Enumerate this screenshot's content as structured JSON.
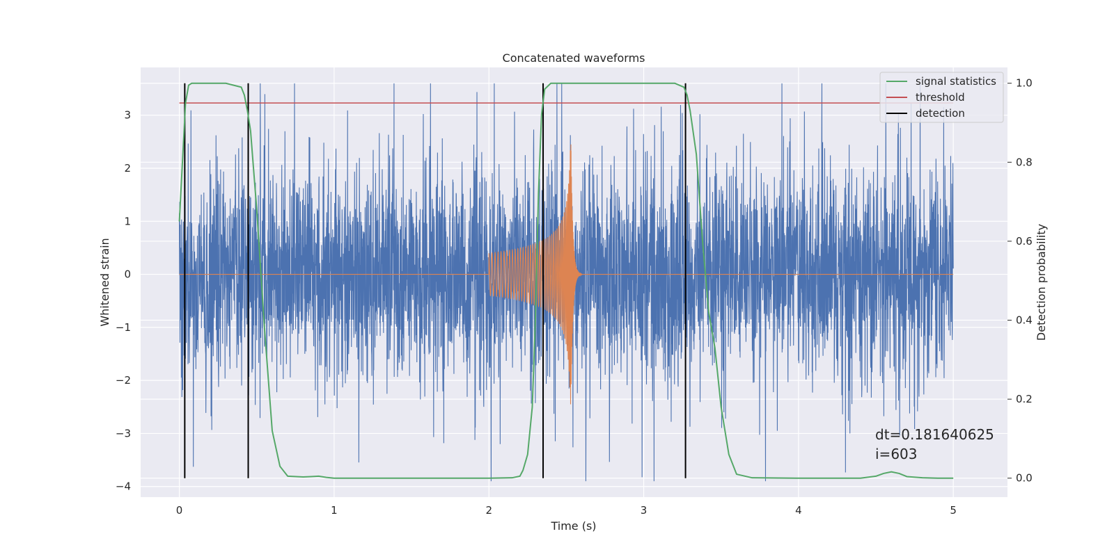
{
  "chart_data": {
    "type": "line",
    "title": "Concatenated waveforms",
    "xlabel": "Time (s)",
    "ylabel": "Whitened strain",
    "ylabel_right": "Detection probability",
    "xlim": [
      -0.25,
      5.35
    ],
    "ylim": [
      -4.2,
      3.9
    ],
    "ylim_right": [
      -0.048,
      1.04
    ],
    "x_ticks": [
      "0",
      "1",
      "2",
      "3",
      "4",
      "5"
    ],
    "x_tick_values": [
      0,
      1,
      2,
      3,
      4,
      5
    ],
    "y_ticks": [
      "−4",
      "−3",
      "−2",
      "−1",
      "0",
      "1",
      "2",
      "3"
    ],
    "y_tick_values": [
      -4,
      -3,
      -2,
      -1,
      0,
      1,
      2,
      3
    ],
    "y_right_ticks": [
      "0.0",
      "0.2",
      "0.4",
      "0.6",
      "0.8",
      "1.0"
    ],
    "y_right_tick_values": [
      0.0,
      0.2,
      0.4,
      0.6,
      0.8,
      1.0
    ],
    "grid": true,
    "legend_position": "upper-right",
    "colors": {
      "noise": "#4c72b0",
      "injection": "#dd8452",
      "signal_statistics": "#55a868",
      "threshold": "#c44e52",
      "detection": "#000000",
      "plot_background": "#eaeaf2",
      "grid": "#ffffff"
    },
    "series": [
      {
        "name": "signal statistics",
        "axis": "right",
        "x": [
          0.0,
          0.02,
          0.04,
          0.06,
          0.08,
          0.1,
          0.2,
          0.3,
          0.4,
          0.42,
          0.44,
          0.46,
          0.5,
          0.55,
          0.6,
          0.65,
          0.7,
          0.8,
          0.85,
          0.9,
          0.95,
          1.0,
          1.5,
          2.0,
          2.15,
          2.2,
          2.22,
          2.25,
          2.28,
          2.3,
          2.32,
          2.34,
          2.36,
          2.4,
          2.5,
          3.0,
          3.2,
          3.26,
          3.28,
          3.3,
          3.34,
          3.38,
          3.42,
          3.46,
          3.5,
          3.55,
          3.6,
          3.7,
          4.0,
          4.4,
          4.5,
          4.55,
          4.6,
          4.65,
          4.7,
          4.8,
          4.9,
          5.0
        ],
        "values": [
          0.65,
          0.8,
          0.95,
          0.995,
          1.0,
          1.0,
          1.0,
          1.0,
          0.99,
          0.97,
          0.93,
          0.88,
          0.68,
          0.38,
          0.12,
          0.03,
          0.005,
          0.003,
          0.004,
          0.005,
          0.002,
          0.0,
          0.0,
          0.0,
          0.001,
          0.005,
          0.02,
          0.06,
          0.18,
          0.4,
          0.72,
          0.92,
          0.985,
          1.0,
          1.0,
          1.0,
          1.0,
          0.99,
          0.97,
          0.93,
          0.82,
          0.6,
          0.42,
          0.33,
          0.18,
          0.06,
          0.01,
          0.001,
          0.0,
          0.0,
          0.005,
          0.012,
          0.016,
          0.012,
          0.004,
          0.001,
          0.0,
          0.0
        ]
      },
      {
        "name": "threshold",
        "axis": "right",
        "x": [
          0.0,
          5.0
        ],
        "values": [
          0.95,
          0.95
        ]
      },
      {
        "name": "detection",
        "axis": "right",
        "x": [
          0.035,
          0.445,
          2.35,
          3.27
        ],
        "y_range": [
          0.0,
          1.0
        ]
      }
    ],
    "noise_trace": {
      "axis": "left",
      "x_range": [
        0.0,
        5.0
      ],
      "amplitude_envelope": [
        -3.9,
        3.6
      ]
    },
    "injection_trace": {
      "axis": "left",
      "x_range": [
        0.0,
        5.0
      ],
      "chirp_start": 2.0,
      "chirp_merger": 2.53,
      "start_amplitude": 0.4,
      "peak_amplitude": 2.45,
      "ringdown_end": 2.6
    },
    "annotation": "dt=0.181640625\n i=603"
  }
}
